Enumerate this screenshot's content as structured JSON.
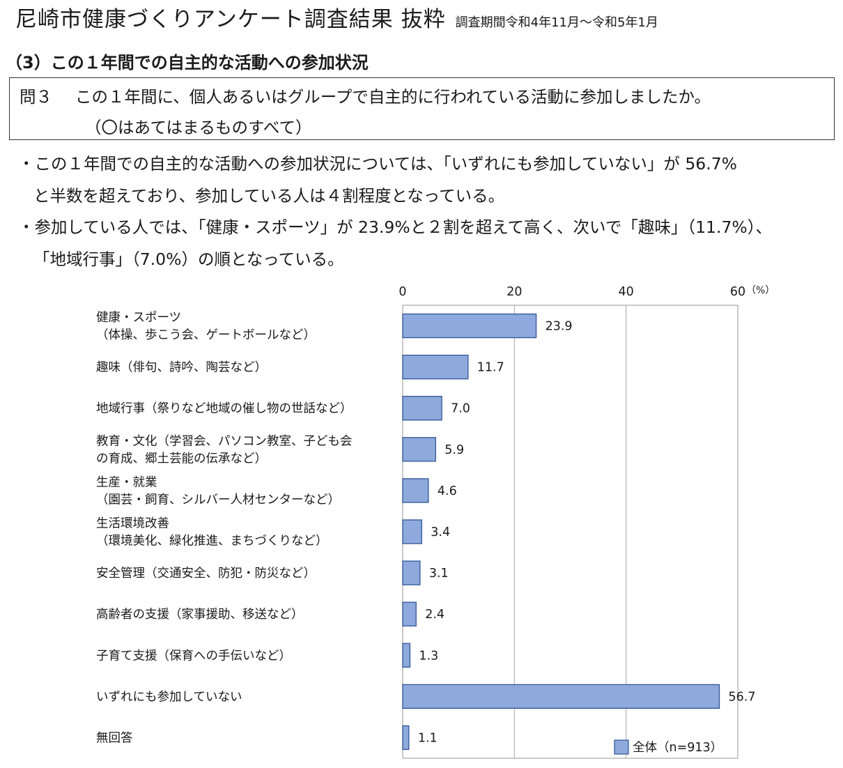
{
  "header": {
    "title": "尼崎市健康づくりアンケート調査結果 抜粋",
    "period": "調査期間令和4年11月～令和5年1月"
  },
  "section_title": "（3）この１年間での自主的な活動への参加状況",
  "question": {
    "number": "問３",
    "text": "この１年間に、個人あるいはグループで自主的に行われている活動に参加しましたか。",
    "note": "（〇はあてはまるものすべて）"
  },
  "summary": {
    "line1": "・この１年間での自主的な活動への参加状況については、「いずれにも参加していない」が 56.7%",
    "line2": "と半数を超えており、参加している人は４割程度となっている。",
    "line3": "・参加している人では、「健康・スポーツ」が 23.9%と２割を超えて高く、次いで「趣味」（11.7%）、",
    "line4": "「地域行事」（7.0%）の順となっている。"
  },
  "chart_data": {
    "type": "bar",
    "orientation": "horizontal",
    "categories": [
      [
        "健康・スポーツ",
        "（体操、歩こう会、ゲートボールなど）"
      ],
      [
        "趣味（俳句、詩吟、陶芸など）"
      ],
      [
        "地域行事（祭りなど地域の催し物の世話など）"
      ],
      [
        "教育・文化（学習会、パソコン教室、子ども会",
        "の育成、郷土芸能の伝承など）"
      ],
      [
        "生産・就業",
        "（園芸・飼育、シルバー人材センターなど）"
      ],
      [
        "生活環境改善",
        "（環境美化、緑化推進、まちづくりなど）"
      ],
      [
        "安全管理（交通安全、防犯・防災など）"
      ],
      [
        "高齢者の支援（家事援助、移送など）"
      ],
      [
        "子育て支援（保育への手伝いなど）"
      ],
      [
        "いずれにも参加していない"
      ],
      [
        "無回答"
      ]
    ],
    "series": [
      {
        "name": "全体（n=913）",
        "values": [
          23.9,
          11.7,
          7.0,
          5.9,
          4.6,
          3.4,
          3.1,
          2.4,
          1.3,
          56.7,
          1.1
        ],
        "labels": [
          "23.9",
          "11.7",
          "7.0",
          "5.9",
          "4.6",
          "3.4",
          "3.1",
          "2.4",
          "1.3",
          "56.7",
          "1.1"
        ]
      }
    ],
    "xlim": [
      0,
      60
    ],
    "xticks": [
      0,
      20,
      40,
      60
    ],
    "xtick_labels": [
      "0",
      "20",
      "40",
      "60"
    ],
    "unit_label": "（%）",
    "grid": true,
    "legend_position": "bottom-right",
    "bar_color": "#8EA9DB",
    "bar_edge_color": "#2F5597"
  }
}
